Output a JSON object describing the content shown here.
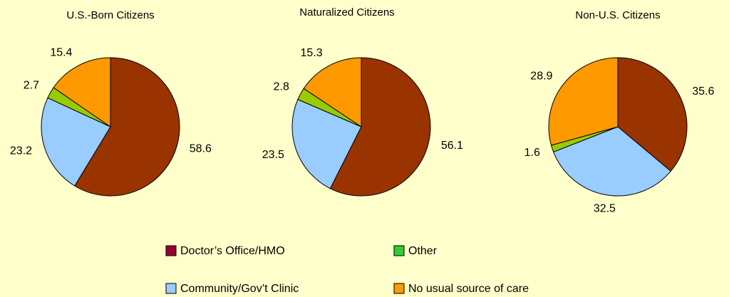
{
  "chart_data": [
    {
      "type": "pie",
      "title": "U.S.-Born Citizens",
      "categories": [
        "Doctor’s Office/HMO",
        "Community/Gov’t Clinic",
        "Other",
        "No usual source of care"
      ],
      "values": [
        58.6,
        23.2,
        2.7,
        15.4
      ],
      "colors": [
        "#993300",
        "#99ccff",
        "#99cc00",
        "#ff9900"
      ]
    },
    {
      "type": "pie",
      "title": "Naturalized Citizens",
      "categories": [
        "Doctor’s Office/HMO",
        "Community/Gov’t Clinic",
        "Other",
        "No usual source of care"
      ],
      "values": [
        56.1,
        23.5,
        2.8,
        15.3
      ],
      "colors": [
        "#993300",
        "#99ccff",
        "#99cc00",
        "#ff9900"
      ]
    },
    {
      "type": "pie",
      "title": "Non-U.S. Citizens",
      "categories": [
        "Doctor’s Office/HMO",
        "Community/Gov’t Clinic",
        "Other",
        "No usual source of care"
      ],
      "values": [
        35.6,
        32.5,
        1.6,
        28.9
      ],
      "colors": [
        "#993300",
        "#99ccff",
        "#99cc00",
        "#ff9900"
      ]
    }
  ],
  "legend": [
    {
      "name": "Doctor’s Office/HMO",
      "color": "#990033"
    },
    {
      "name": "Other",
      "color": "#33cc33"
    },
    {
      "name": "Community/Gov’t Clinic",
      "color": "#99ccff"
    },
    {
      "name": "No usual source of care",
      "color": "#ff9900"
    }
  ]
}
